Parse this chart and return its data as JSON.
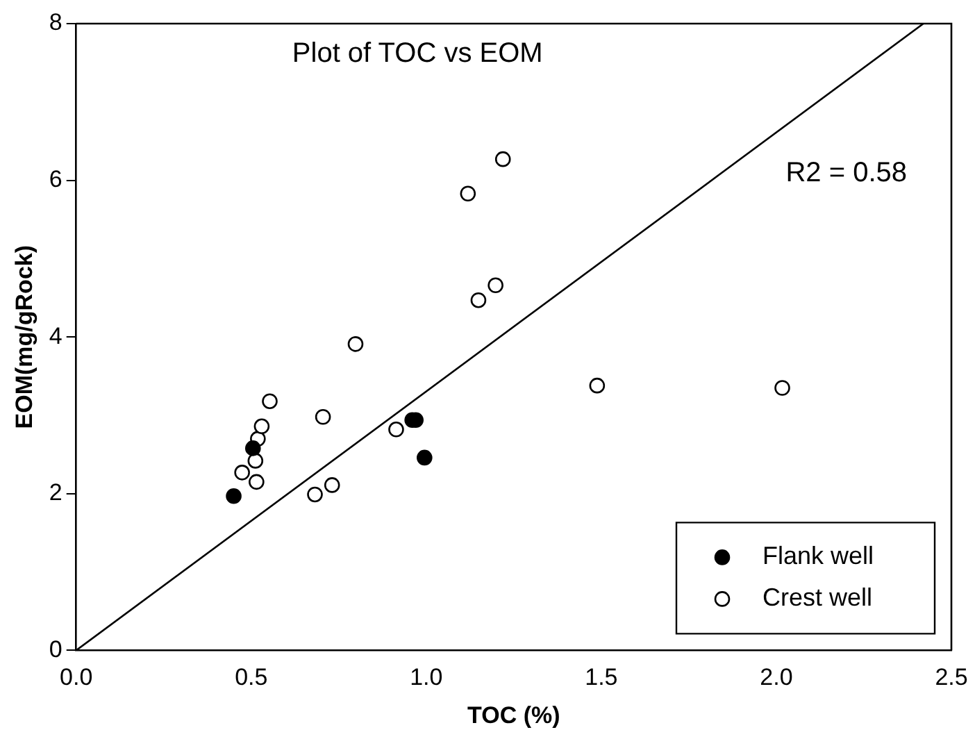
{
  "chart_data": {
    "type": "scatter",
    "title": "Plot of TOC vs EOM",
    "xlabel": "TOC (%)",
    "ylabel": "EOM(mg/gRock)",
    "xlim": [
      0,
      2.5
    ],
    "xticks": [
      {
        "value": 0,
        "label": "0.0"
      },
      {
        "value": 0.5,
        "label": "0.5"
      },
      {
        "value": 1,
        "label": "1.0"
      },
      {
        "value": 1.5,
        "label": "1.5"
      },
      {
        "value": 2,
        "label": "2.0"
      },
      {
        "value": 2.5,
        "label": "2.5"
      }
    ],
    "ylim": [
      0,
      8
    ],
    "yticks": [
      0,
      2,
      4,
      6,
      8
    ],
    "grid": false,
    "legend": "bottom right",
    "marker": "circle",
    "annotations": [
      "R2 = 0.58"
    ],
    "series": [
      {
        "name": "Flank well",
        "color": "#000000",
        "x": [
          0.45,
          0.505,
          0.96,
          0.97,
          0.995
        ],
        "values": [
          1.97,
          2.58,
          2.94,
          2.94,
          2.46
        ]
      },
      {
        "name": "Crest well",
        "color": "#ffffff",
        "x": [
          0.474,
          0.515,
          0.512,
          0.519,
          0.53,
          0.553,
          0.705,
          0.682,
          0.731,
          0.914,
          0.798,
          1.219,
          1.119,
          1.198,
          1.149,
          1.488,
          2.017
        ],
        "values": [
          2.27,
          2.15,
          2.42,
          2.7,
          2.86,
          3.18,
          2.98,
          1.99,
          2.11,
          2.82,
          3.91,
          6.27,
          5.83,
          4.66,
          4.47,
          3.38,
          3.35
        ]
      },
      {
        "type": "line",
        "color": "#000000",
        "marker": "none",
        "line_style": "solid",
        "x": [
          0,
          2.42
        ],
        "values": [
          0,
          8
        ]
      }
    ]
  }
}
